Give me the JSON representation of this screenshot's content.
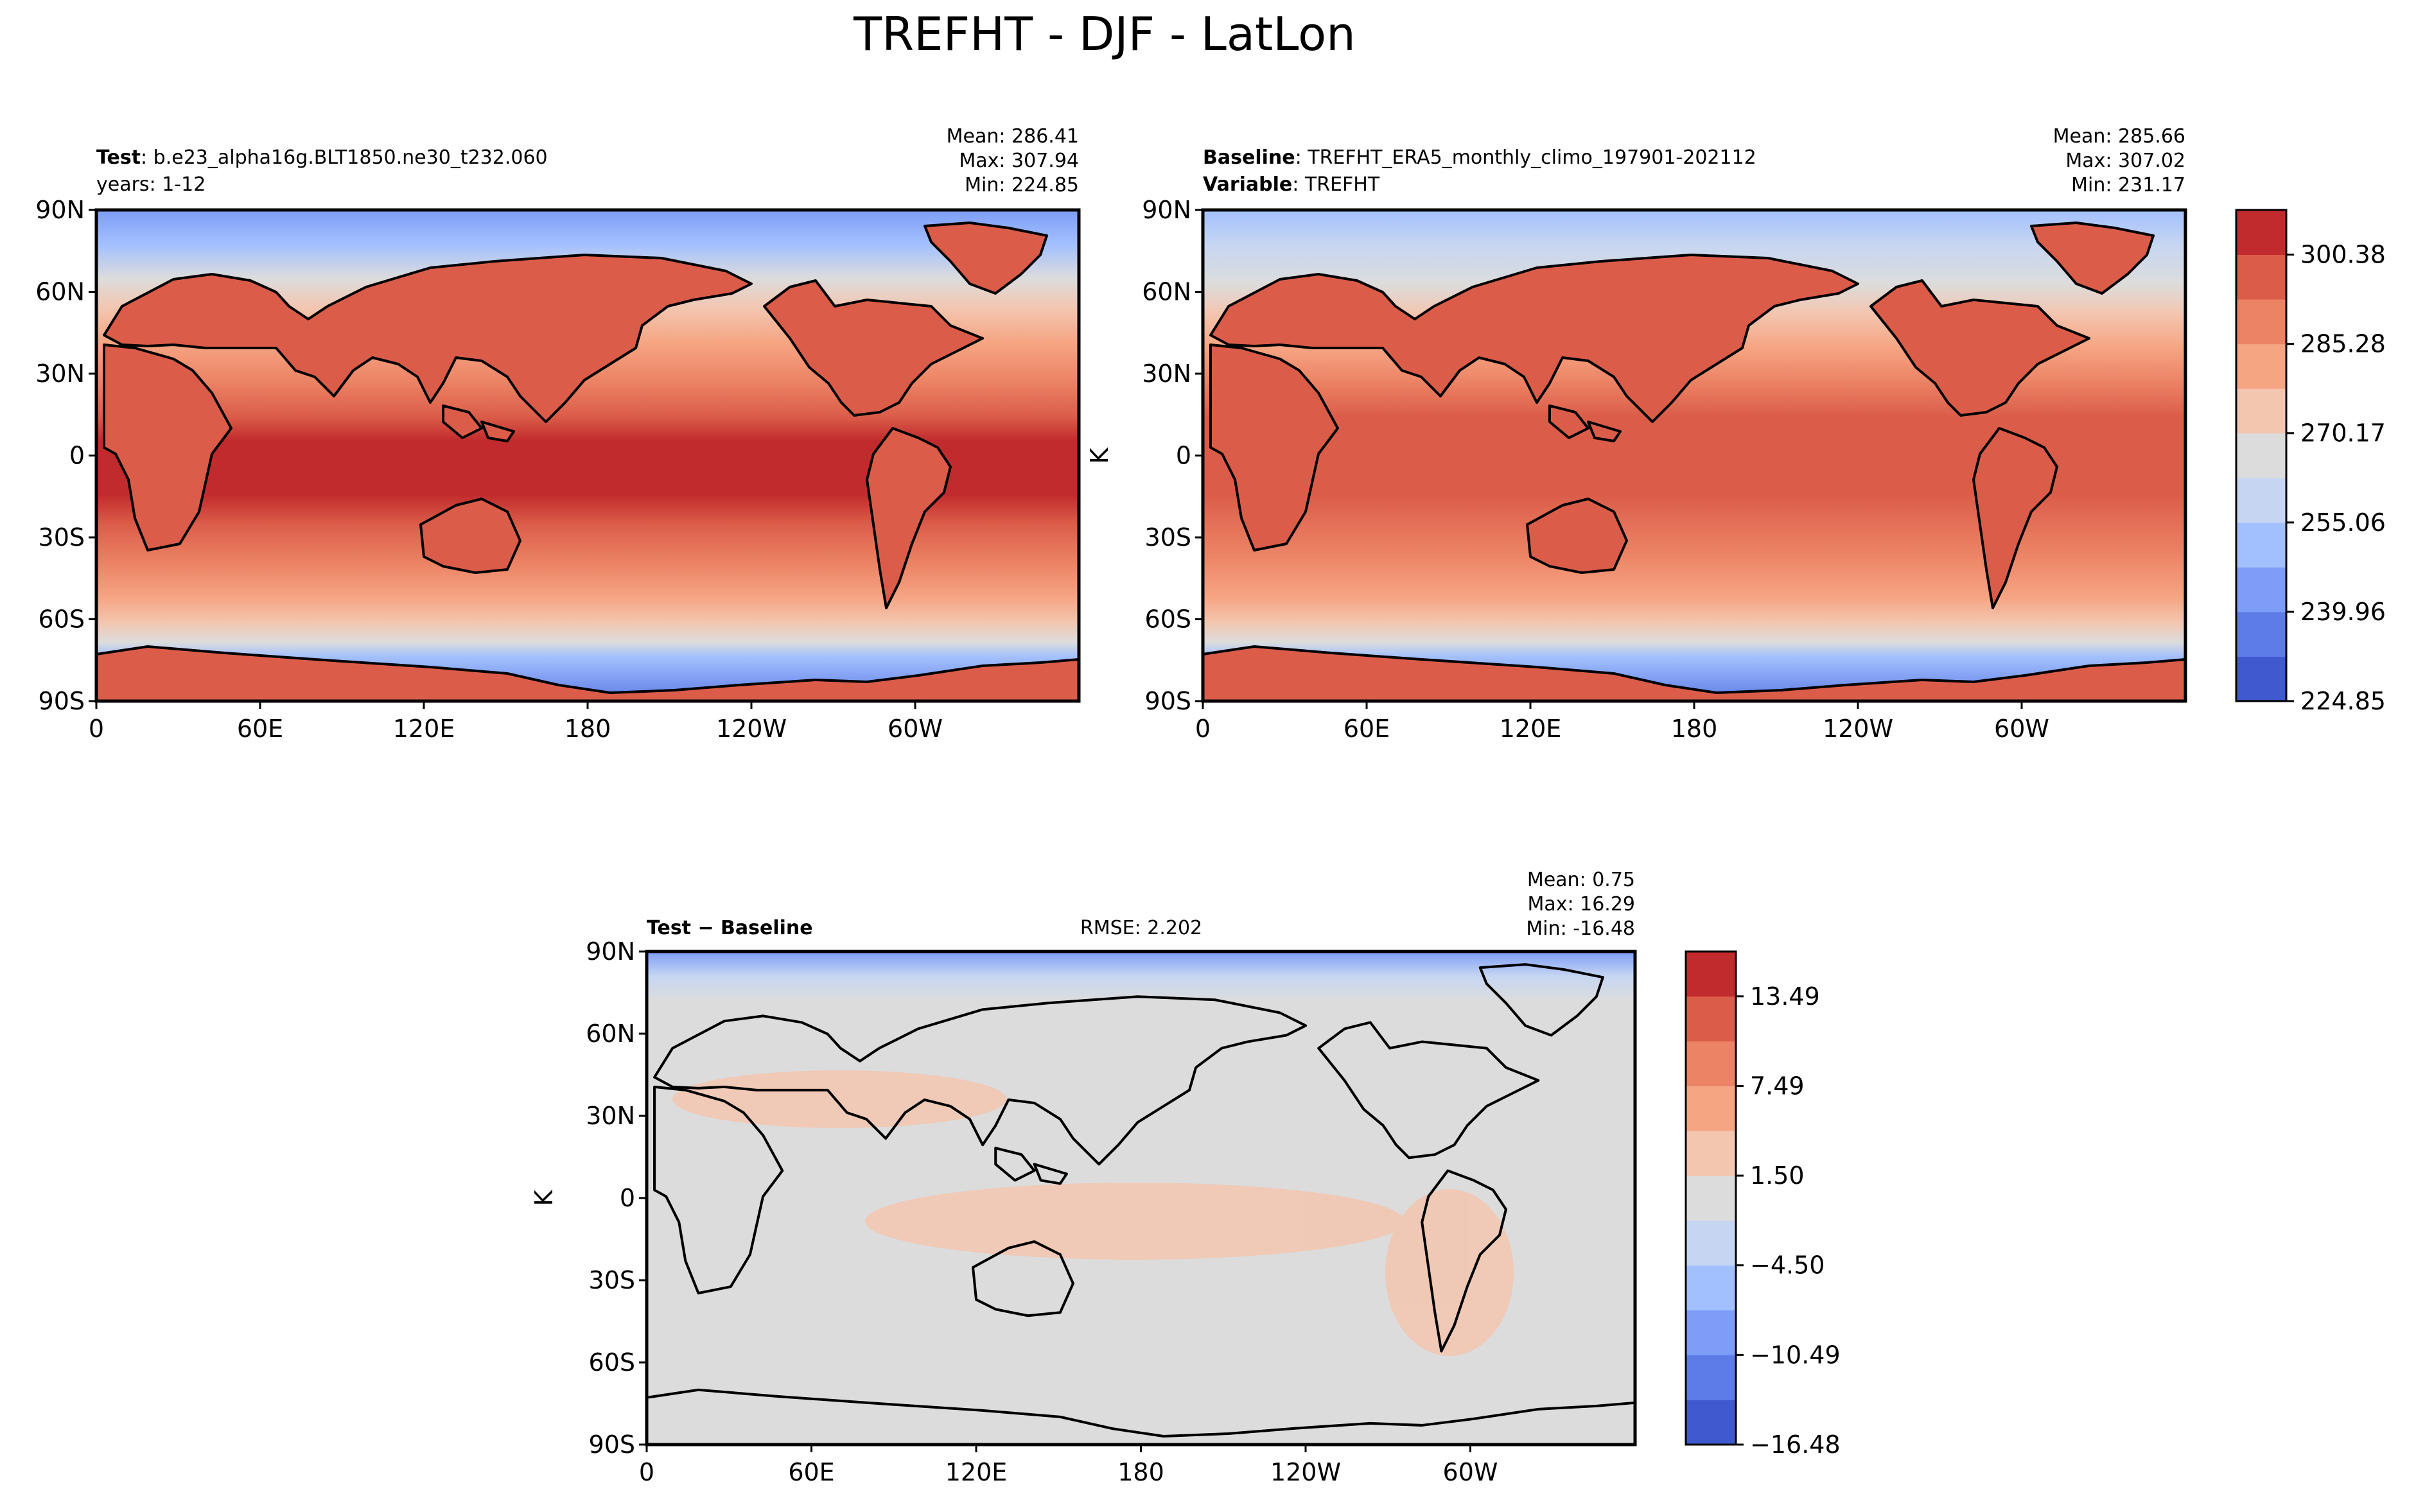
{
  "figure": {
    "title": "TREFHT - DJF - LatLon"
  },
  "colors": {
    "scale": [
      "#4059cf",
      "#5d7ce6",
      "#7d9df8",
      "#a3c0fe",
      "#c6d6f2",
      "#dcdcdc",
      "#f3c6b0",
      "#f6a583",
      "#ec8365",
      "#db5d49",
      "#c22b2d"
    ],
    "outline": "#000000"
  },
  "axes": {
    "lat_ticks": [
      "90N",
      "60N",
      "30N",
      "0",
      "30S",
      "60S",
      "90S"
    ],
    "lon_ticks": [
      "0",
      "60E",
      "120E",
      "180",
      "120W",
      "60W"
    ]
  },
  "panels": {
    "test": {
      "label_bold": "Test",
      "label_text": ": b.e23_alpha16g.BLT1850.ne30_t232.060",
      "line2": "years: 1-12",
      "stats": {
        "mean": "Mean: 286.41",
        "max": "Max: 307.94",
        "min": "Min: 224.85"
      }
    },
    "baseline": {
      "label_bold": "Baseline",
      "label_text": ": TREFHT_ERA5_monthly_climo_197901-202112",
      "line2_bold": "Variable",
      "line2_text": ": TREFHT",
      "ylabel": "K",
      "stats": {
        "mean": "Mean: 285.66",
        "max": "Max: 307.02",
        "min": "Min: 231.17"
      }
    },
    "diff": {
      "label": "Test − Baseline",
      "rmse": "RMSE: 2.202",
      "ylabel": "K",
      "stats": {
        "mean": "Mean:  0.75",
        "max": "Max: 16.29",
        "min": "Min: -16.48"
      }
    }
  },
  "colorbars": {
    "abs": {
      "labels": [
        "300.38",
        "285.28",
        "270.17",
        "255.06",
        "239.96",
        "224.85"
      ]
    },
    "diff": {
      "labels": [
        "13.49",
        "7.49",
        "1.50",
        "−4.50",
        "−10.49",
        "−16.48"
      ]
    }
  }
}
